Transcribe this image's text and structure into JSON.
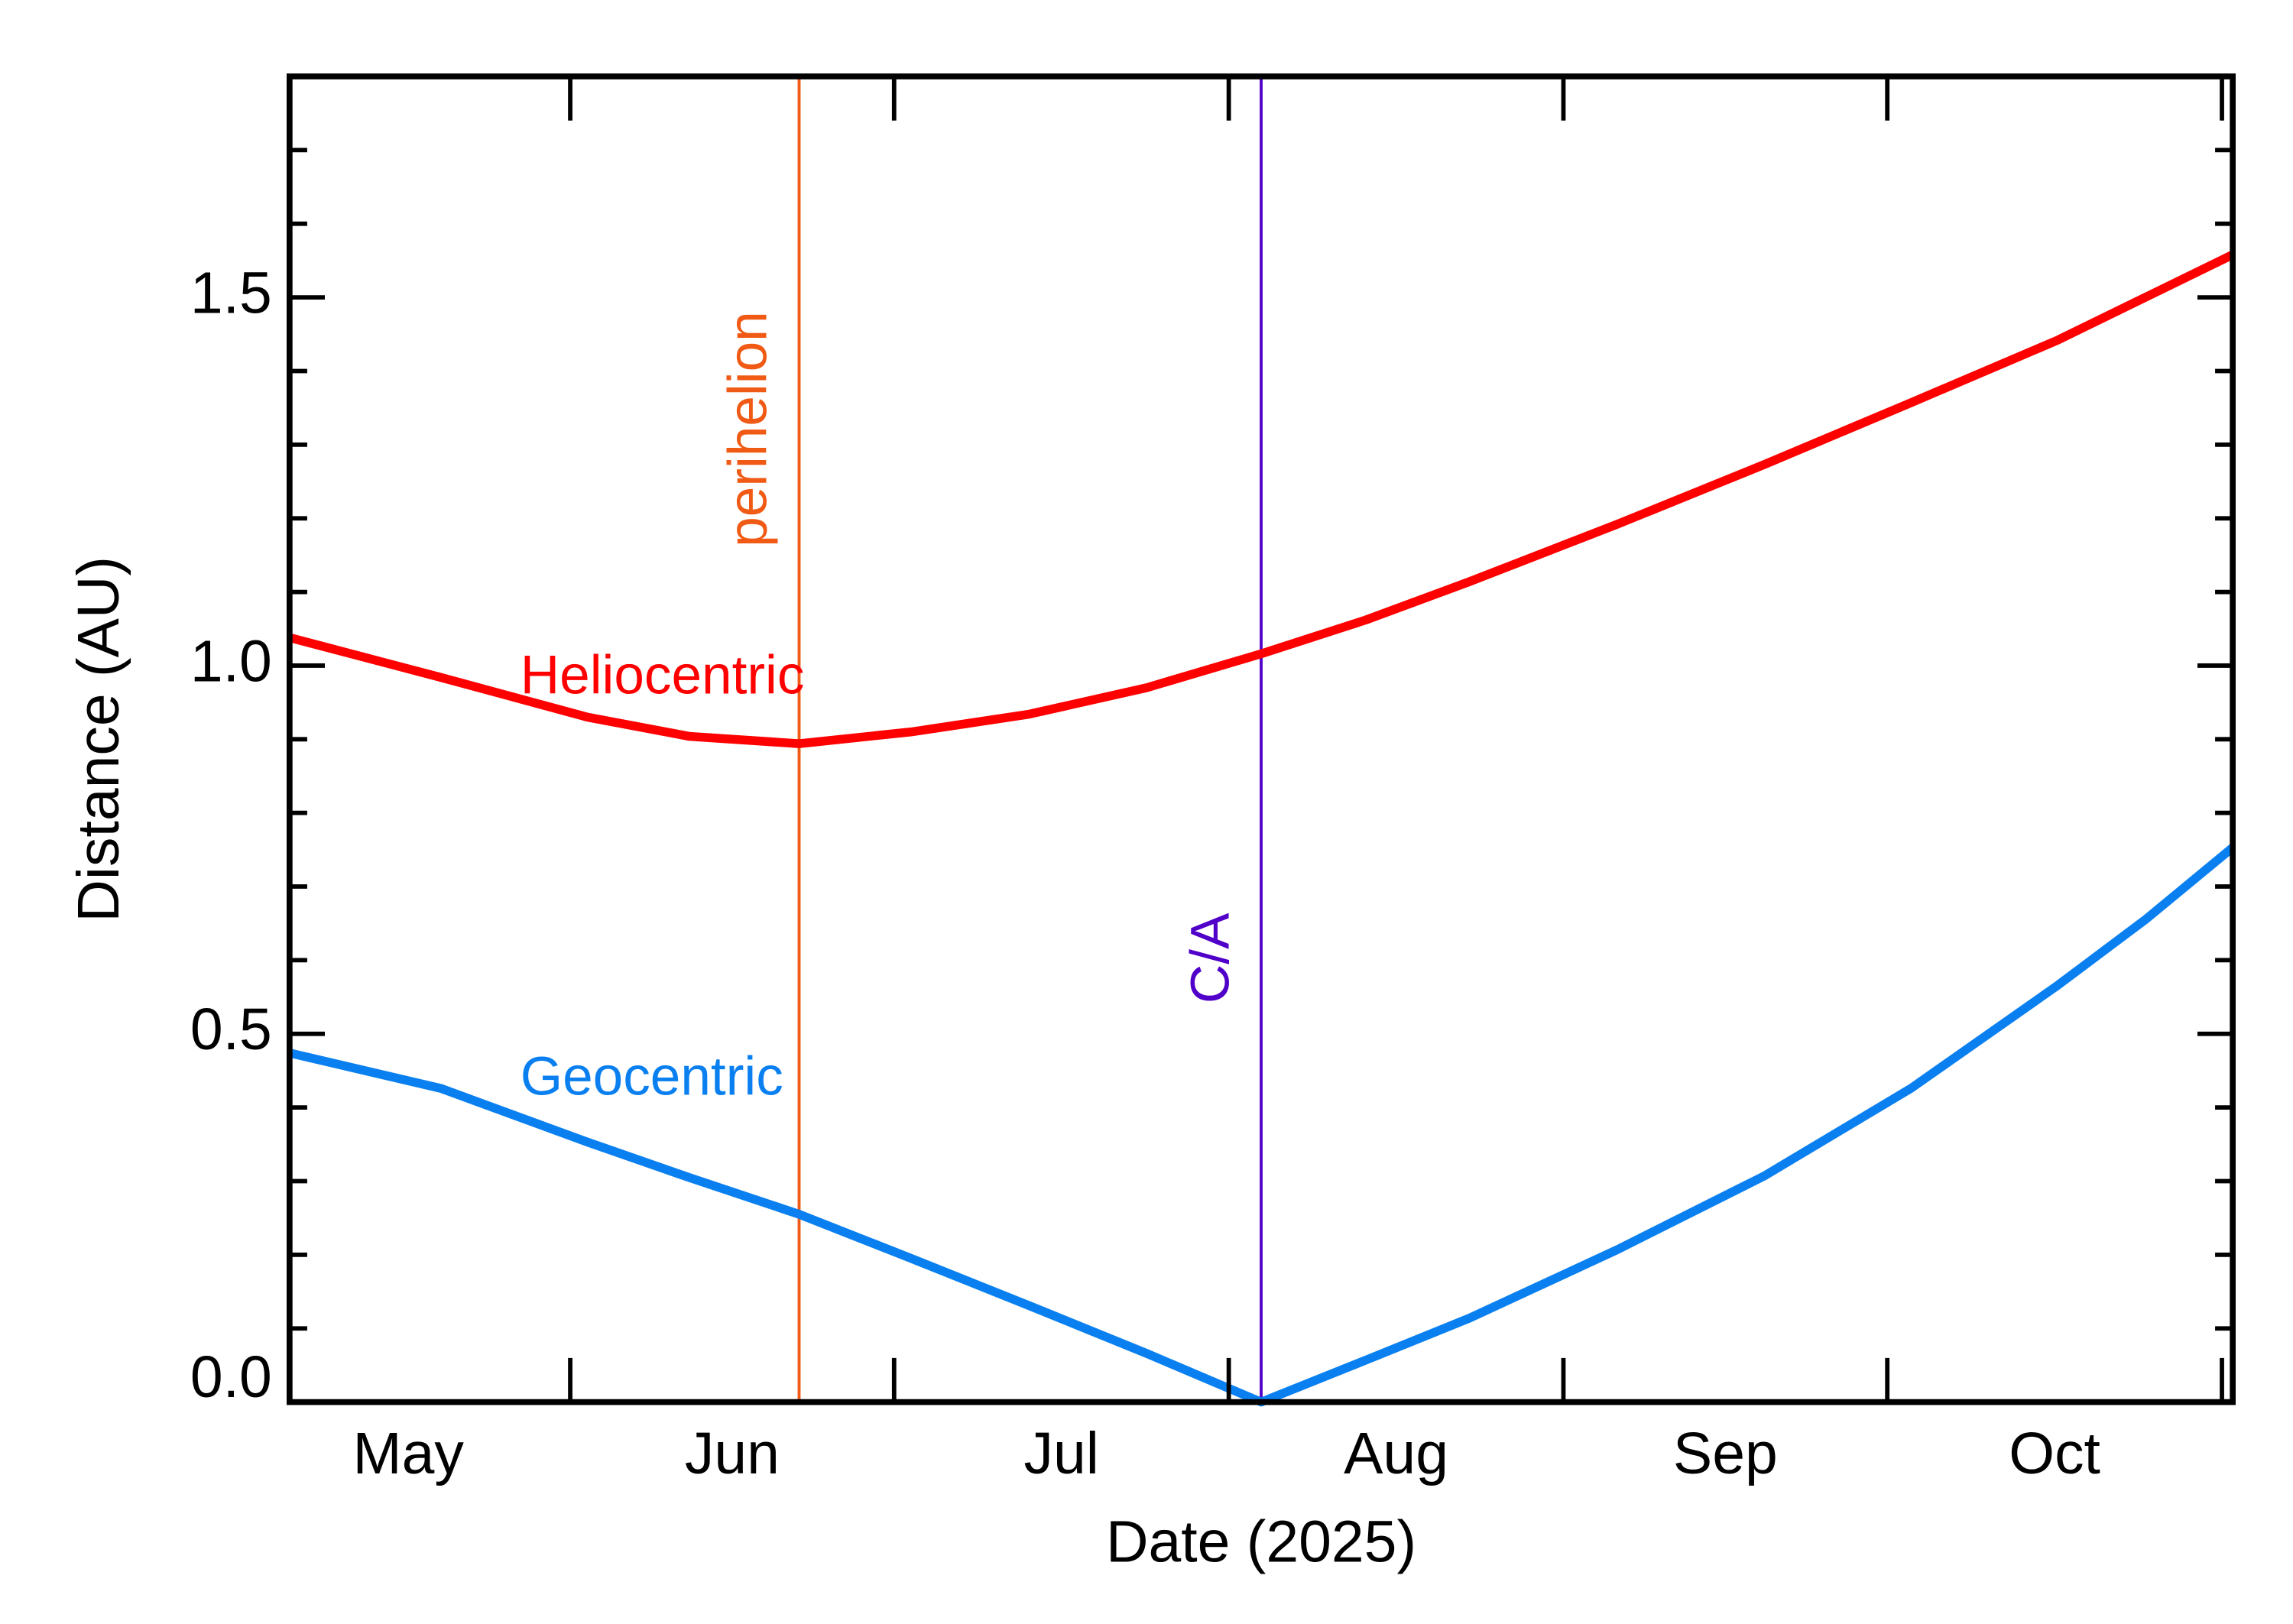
{
  "chart_data": {
    "type": "line",
    "xlabel": "Date (2025)",
    "ylabel": "Distance (AU)",
    "x": [
      126,
      140,
      153.6,
      163,
      173.2,
      183.6,
      194.5,
      205.4,
      216,
      225.7,
      235.3,
      249,
      262.6,
      276.2,
      289.8,
      297.9,
      306
    ],
    "series": [
      {
        "name": "Heliocentric",
        "color": "#ff0000",
        "values": [
          1.038,
          0.984,
          0.93,
          0.904,
          0.894,
          0.91,
          0.934,
          0.97,
          1.016,
          1.062,
          1.114,
          1.192,
          1.273,
          1.357,
          1.442,
          1.5,
          1.558
        ]
      },
      {
        "name": "Geocentric",
        "color": "#0a80f0",
        "values": [
          0.474,
          0.426,
          0.353,
          0.305,
          0.255,
          0.195,
          0.131,
          0.066,
          0.0,
          0.057,
          0.114,
          0.207,
          0.307,
          0.426,
          0.566,
          0.655,
          0.753
        ]
      }
    ],
    "xlim": [
      126,
      306
    ],
    "xticks": [
      152,
      182,
      213,
      244,
      274,
      305
    ],
    "month_labels": [
      {
        "value": 137,
        "label": "May"
      },
      {
        "value": 167,
        "label": "Jun"
      },
      {
        "value": 197.5,
        "label": "Jul"
      },
      {
        "value": 228.5,
        "label": "Aug"
      },
      {
        "value": 259,
        "label": "Sep"
      },
      {
        "value": 289.5,
        "label": "Oct"
      }
    ],
    "ylim": [
      0,
      1.8
    ],
    "yticks": [
      {
        "value": 0,
        "label": "0.0"
      },
      {
        "value": 0.5,
        "label": "0.5"
      },
      {
        "value": 1,
        "label": "1.0"
      },
      {
        "value": 1.5,
        "label": "1.5"
      }
    ],
    "yminor_ticks": [
      0.1,
      0.2,
      0.3,
      0.4,
      0.6,
      0.7,
      0.8,
      0.9,
      1.1,
      1.2,
      1.3,
      1.4,
      1.6,
      1.7
    ],
    "events": [
      {
        "label": "perihelion",
        "x": 173.2,
        "color": "#f05a14"
      },
      {
        "label": "C/A",
        "x": 216,
        "color": "#5000c8"
      }
    ]
  }
}
